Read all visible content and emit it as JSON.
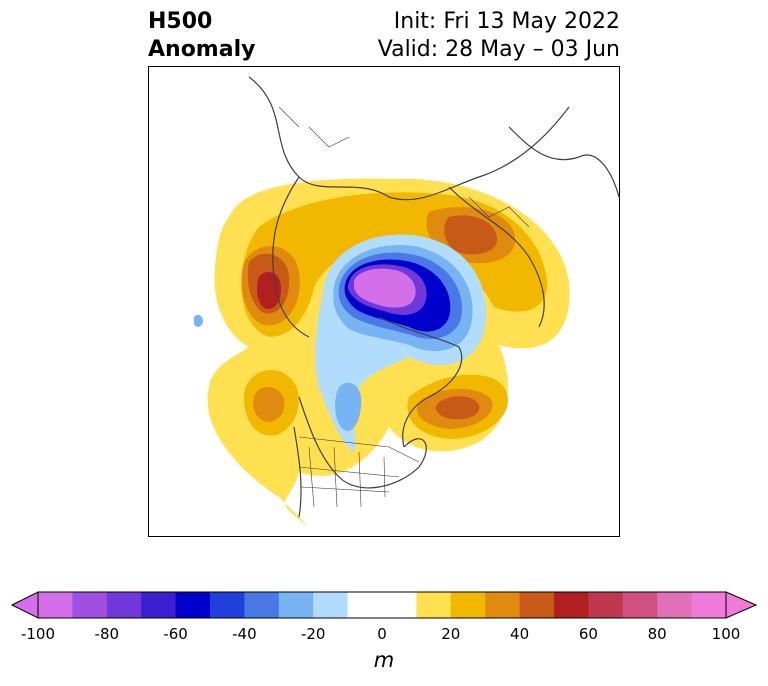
{
  "header": {
    "title_line1": "H500",
    "title_line2": "Anomaly",
    "init_label": "Init: Fri 13 May 2022",
    "valid_label": "Valid: 28 May – 03 Jun"
  },
  "colorbar": {
    "unit": "m",
    "ticks": [
      "-100",
      "-80",
      "-60",
      "-40",
      "-20",
      "0",
      "20",
      "40",
      "60",
      "80",
      "100"
    ],
    "colors": [
      "#d36fe8",
      "#a050e0",
      "#7038d8",
      "#3a1ed0",
      "#0000cc",
      "#2040dc",
      "#4a78e6",
      "#78b4f4",
      "#b2dcfc",
      "#ffffff",
      "#ffffff",
      "#ffe050",
      "#f2b800",
      "#e08a10",
      "#c85a18",
      "#b02020",
      "#c03850",
      "#d05080",
      "#e070b8",
      "#f07ad8"
    ]
  },
  "map": {
    "features": [
      "coastlines",
      "country-borders",
      "state-borders"
    ],
    "anomalies": [
      {
        "region": "arctic-low",
        "sign": "negative",
        "peak_m": -100
      },
      {
        "region": "western-europe-high",
        "sign": "positive",
        "peak_m": 60
      },
      {
        "region": "siberia-high",
        "sign": "positive",
        "peak_m": 50
      },
      {
        "region": "alaska-pacific-high",
        "sign": "positive",
        "peak_m": 40
      },
      {
        "region": "eastern-canada-high",
        "sign": "positive",
        "peak_m": 50
      }
    ]
  }
}
